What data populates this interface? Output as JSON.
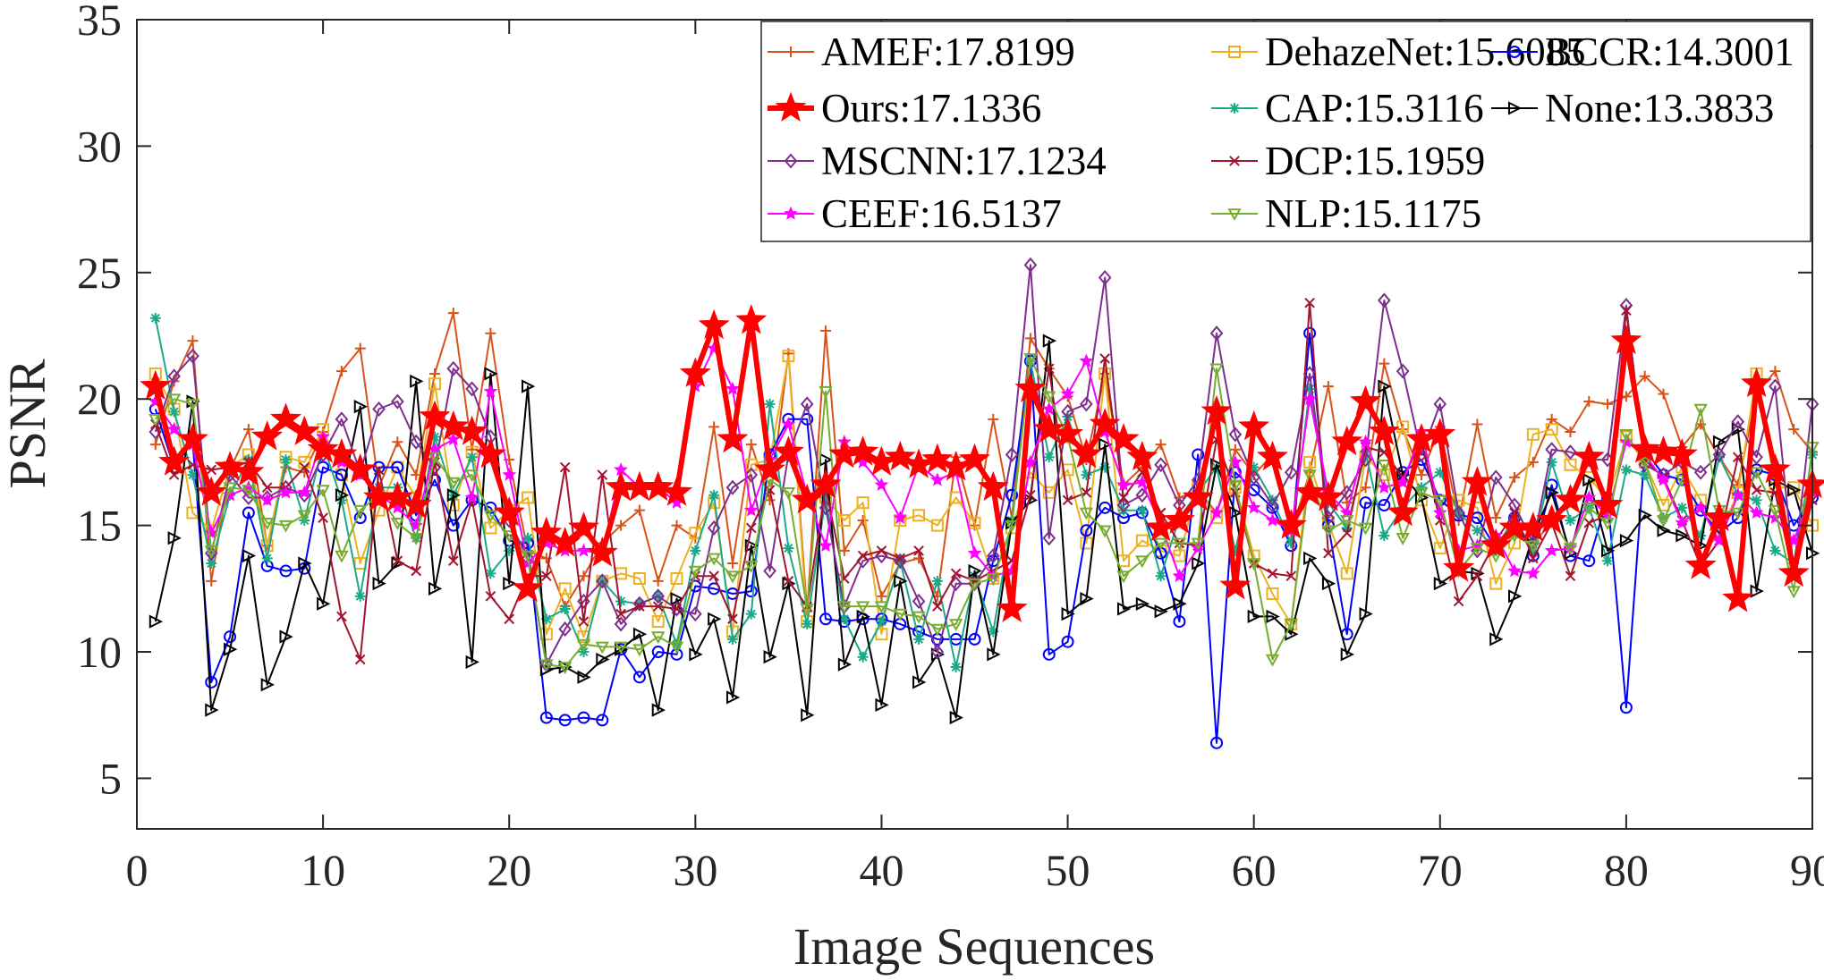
{
  "chart_data": {
    "type": "line",
    "title": "",
    "xlabel": "Image Sequences",
    "ylabel": "PSNR",
    "xlim": [
      0,
      90
    ],
    "ylim": [
      3,
      35
    ],
    "xticks": [
      0,
      10,
      20,
      30,
      40,
      50,
      60,
      70,
      80,
      90
    ],
    "yticks": [
      5,
      10,
      15,
      20,
      25,
      30,
      35
    ],
    "grid": false,
    "legend_position": "top-right",
    "x": [
      1,
      2,
      3,
      4,
      5,
      6,
      7,
      8,
      9,
      10,
      11,
      12,
      13,
      14,
      15,
      16,
      17,
      18,
      19,
      20,
      21,
      22,
      23,
      24,
      25,
      26,
      27,
      28,
      29,
      30,
      31,
      32,
      33,
      34,
      35,
      36,
      37,
      38,
      39,
      40,
      41,
      42,
      43,
      44,
      45,
      46,
      47,
      48,
      49,
      50,
      51,
      52,
      53,
      54,
      55,
      56,
      57,
      58,
      59,
      60,
      61,
      62,
      63,
      64,
      65,
      66,
      67,
      68,
      69,
      70,
      71,
      72,
      73,
      74,
      75,
      76,
      77,
      78,
      79,
      80,
      81,
      82,
      83,
      84,
      85,
      86,
      87,
      88,
      89,
      90
    ],
    "series": [
      {
        "name": "AMEF:17.8199",
        "color": "#D95319",
        "marker": "plus",
        "linewidth": 2,
        "values": [
          18.2,
          20.7,
          22.3,
          12.8,
          17.2,
          18.8,
          14.2,
          17.3,
          17.1,
          18.7,
          21.1,
          22.0,
          16.5,
          18.3,
          17.0,
          21.0,
          23.4,
          18.0,
          22.6,
          17.6,
          14.0,
          13.7,
          11.8,
          13.0,
          14.3,
          15.0,
          15.6,
          12.8,
          15.0,
          14.5,
          18.9,
          13.5,
          18.2,
          16.0,
          21.8,
          11.6,
          22.7,
          14.0,
          15.2,
          12.2,
          13.5,
          13.7,
          12.2,
          17.7,
          15.0,
          19.2,
          15.3,
          22.4,
          21.2,
          20.1,
          17.6,
          21.0,
          16.6,
          17.3,
          18.2,
          16.1,
          16.4,
          15.5,
          18.0,
          17.0,
          17.8,
          14.7,
          17.1,
          20.5,
          15.9,
          16.5,
          21.4,
          18.8,
          17.0,
          18.9,
          15.2,
          19.0,
          15.3,
          16.9,
          17.5,
          19.2,
          18.7,
          19.9,
          19.8,
          20.1,
          20.9,
          20.2,
          18.1,
          19.0,
          17.7,
          16.6,
          20.2,
          21.1,
          18.8,
          17.9
        ]
      },
      {
        "name": "DehazeNet:15.6085",
        "color": "#EDB120",
        "marker": "square",
        "linewidth": 2,
        "values": [
          21.0,
          19.6,
          15.5,
          14.8,
          17.3,
          17.8,
          14.2,
          17.7,
          17.5,
          18.8,
          17.0,
          13.5,
          15.6,
          17.3,
          16.1,
          20.6,
          15.8,
          17.9,
          14.9,
          15.6,
          16.1,
          10.7,
          12.5,
          10.6,
          12.8,
          13.1,
          12.9,
          11.2,
          12.9,
          14.7,
          15.9,
          10.8,
          17.4,
          17.6,
          21.7,
          11.2,
          16.1,
          15.2,
          15.9,
          10.7,
          15.2,
          15.4,
          15.0,
          16.1,
          15.1,
          12.9,
          14.9,
          17.1,
          16.3,
          17.2,
          14.3,
          21.0,
          13.6,
          14.4,
          14.0,
          13.8,
          16.5,
          15.3,
          16.5,
          13.8,
          12.3,
          11.1,
          17.5,
          15.1,
          13.1,
          17.7,
          17.0,
          18.9,
          16.0,
          14.1,
          16.0,
          15.7,
          12.7,
          14.3,
          18.6,
          18.8,
          17.4,
          16.9,
          16.0,
          18.5,
          17.5,
          15.8,
          17.3,
          16.0,
          14.6,
          16.3,
          21.0,
          16.5,
          16.5,
          15.0
        ]
      },
      {
        "name": "BCCR:14.3001",
        "color": "#0000FF",
        "marker": "circle",
        "linewidth": 2,
        "values": [
          19.6,
          17.3,
          18.3,
          8.8,
          10.6,
          15.5,
          13.4,
          13.2,
          13.3,
          17.3,
          17.0,
          15.3,
          17.3,
          17.3,
          15.4,
          16.8,
          15.0,
          16.0,
          15.7,
          14.4,
          14.3,
          7.4,
          7.3,
          7.4,
          7.3,
          10.1,
          9.0,
          10.0,
          9.9,
          12.6,
          12.5,
          12.3,
          12.4,
          17.8,
          19.2,
          19.2,
          11.3,
          11.2,
          11.3,
          11.3,
          11.1,
          10.8,
          10.5,
          10.5,
          10.5,
          13.6,
          16.2,
          21.5,
          9.9,
          10.4,
          14.8,
          15.7,
          15.3,
          15.5,
          13.9,
          11.2,
          17.8,
          6.4,
          17.1,
          16.4,
          15.7,
          14.2,
          22.6,
          15.0,
          10.7,
          15.9,
          15.8,
          17.1,
          17.6,
          16.0,
          15.4,
          15.3,
          14.1,
          15.3,
          13.8,
          16.6,
          13.8,
          13.6,
          16.1,
          7.8,
          18.0,
          17.0,
          16.8,
          15.6,
          14.7,
          15.3,
          17.2,
          17.0,
          15.0,
          16.1
        ]
      },
      {
        "name": "Ours:17.1336",
        "color": "#FF0000",
        "marker": "star",
        "linewidth": 6,
        "values": [
          20.5,
          17.5,
          18.4,
          16.3,
          17.3,
          17.1,
          18.5,
          19.2,
          18.7,
          18.0,
          17.8,
          17.2,
          16.1,
          16.1,
          15.8,
          19.3,
          18.9,
          18.7,
          17.8,
          15.5,
          12.5,
          14.7,
          14.3,
          14.9,
          13.9,
          16.5,
          16.5,
          16.5,
          16.3,
          21.0,
          22.9,
          18.4,
          23.1,
          17.2,
          17.9,
          16.0,
          16.6,
          17.8,
          17.9,
          17.5,
          17.7,
          17.4,
          17.6,
          17.3,
          17.6,
          16.5,
          11.7,
          20.4,
          18.8,
          18.6,
          17.8,
          19.0,
          18.4,
          17.7,
          14.9,
          15.2,
          16.1,
          19.5,
          12.6,
          18.9,
          17.7,
          15.0,
          16.3,
          16.1,
          18.3,
          19.9,
          18.7,
          15.5,
          18.4,
          18.6,
          13.3,
          16.7,
          14.2,
          14.9,
          14.9,
          15.2,
          16.0,
          17.7,
          15.8,
          22.3,
          18.0,
          17.9,
          17.8,
          13.4,
          15.3,
          12.1,
          20.6,
          17.2,
          13.1,
          16.6
        ]
      },
      {
        "name": "CAP:15.3116",
        "color": "#1AAA8A",
        "marker": "asterisk",
        "linewidth": 2,
        "values": [
          23.2,
          19.5,
          17.0,
          13.5,
          16.2,
          17.6,
          13.7,
          17.6,
          15.2,
          18.2,
          16.0,
          12.2,
          16.5,
          16.5,
          14.5,
          18.5,
          16.2,
          17.7,
          13.1,
          14.0,
          14.5,
          11.3,
          11.7,
          10.0,
          12.8,
          12.0,
          11.9,
          12.2,
          10.3,
          14.0,
          16.2,
          10.5,
          11.5,
          19.8,
          14.1,
          11.1,
          16.1,
          11.3,
          9.8,
          11.2,
          13.6,
          10.5,
          12.8,
          9.4,
          13.0,
          10.8,
          15.2,
          21.5,
          17.7,
          19.3,
          17.0,
          17.3,
          15.6,
          15.6,
          13.0,
          15.3,
          16.3,
          17.3,
          14.0,
          17.3,
          16.0,
          14.3,
          20.4,
          15.9,
          14.9,
          17.9,
          14.6,
          15.7,
          16.5,
          17.1,
          15.5,
          14.8,
          14.1,
          15.3,
          14.0,
          17.5,
          15.2,
          15.7,
          13.6,
          17.2,
          17.0,
          15.3,
          15.7,
          14.6,
          17.7,
          16.2,
          16.0,
          14.0,
          13.5,
          17.8
        ]
      },
      {
        "name": "None:13.3833",
        "color": "#000000",
        "marker": "triangle-right",
        "linewidth": 2,
        "values": [
          11.2,
          14.5,
          19.9,
          7.7,
          10.1,
          13.8,
          8.7,
          10.6,
          13.5,
          11.9,
          16.2,
          19.7,
          12.7,
          13.5,
          20.7,
          12.5,
          16.2,
          9.6,
          21.0,
          12.7,
          20.5,
          9.3,
          9.4,
          9.0,
          9.7,
          10.1,
          10.7,
          7.7,
          12.1,
          9.9,
          11.3,
          8.2,
          14.2,
          9.8,
          12.7,
          7.5,
          17.6,
          9.5,
          11.4,
          7.9,
          12.8,
          8.8,
          9.9,
          7.4,
          13.2,
          9.9,
          15.1,
          16.0,
          22.3,
          11.5,
          12.1,
          18.2,
          11.7,
          11.9,
          11.6,
          11.9,
          13.5,
          17.4,
          15.5,
          11.4,
          11.4,
          10.7,
          13.7,
          12.7,
          9.9,
          11.5,
          20.5,
          17.0,
          16.1,
          12.7,
          13.2,
          13.1,
          10.5,
          12.2,
          14.6,
          16.3,
          13.9,
          16.8,
          14.0,
          14.4,
          15.4,
          14.8,
          14.6,
          14.2,
          18.3,
          18.8,
          12.4,
          16.8,
          16.4,
          13.9
        ]
      },
      {
        "name": "MSCNN:17.1234",
        "color": "#7E2F8E",
        "marker": "diamond",
        "linewidth": 2,
        "values": [
          18.7,
          20.9,
          21.7,
          13.9,
          17.0,
          16.1,
          16.1,
          16.5,
          16.2,
          17.8,
          19.2,
          17.1,
          19.6,
          19.9,
          18.3,
          17.3,
          21.2,
          20.4,
          18.5,
          15.2,
          13.7,
          9.5,
          10.9,
          12.0,
          12.8,
          11.1,
          11.9,
          12.2,
          11.7,
          11.5,
          14.9,
          16.5,
          17.0,
          13.2,
          17.8,
          19.8,
          15.7,
          11.8,
          13.6,
          13.8,
          13.6,
          12.0,
          10.0,
          12.7,
          12.7,
          13.8,
          17.8,
          25.3,
          14.5,
          19.5,
          19.8,
          24.8,
          15.8,
          16.2,
          17.4,
          15.8,
          16.8,
          22.6,
          18.6,
          16.9,
          15.8,
          17.1,
          21.0,
          15.3,
          16.3,
          17.6,
          23.9,
          21.1,
          17.8,
          19.8,
          15.5,
          14.0,
          16.9,
          15.8,
          14.3,
          18.0,
          17.9,
          17.6,
          17.6,
          23.7,
          17.4,
          17.0,
          17.5,
          17.1,
          17.8,
          19.1,
          17.7,
          20.5,
          13.2,
          19.8
        ]
      },
      {
        "name": "DCP:15.1959",
        "color": "#A2142F",
        "marker": "x",
        "linewidth": 2,
        "values": [
          19.0,
          17.0,
          17.4,
          17.2,
          17.3,
          17.5,
          16.5,
          16.5,
          17.3,
          15.3,
          11.4,
          9.7,
          17.2,
          13.6,
          13.2,
          17.5,
          13.6,
          16.0,
          12.2,
          11.3,
          13.0,
          13.0,
          17.3,
          11.2,
          17.0,
          11.5,
          11.8,
          11.8,
          11.7,
          13.0,
          13.0,
          11.3,
          14.9,
          16.4,
          12.8,
          11.8,
          16.5,
          12.9,
          13.8,
          14.0,
          13.7,
          14.0,
          11.8,
          13.1,
          12.8,
          13.2,
          13.6,
          16.2,
          21.2,
          16.0,
          16.3,
          21.6,
          16.1,
          17.1,
          15.5,
          14.3,
          14.2,
          18.4,
          16.3,
          13.5,
          13.1,
          13.0,
          23.8,
          13.9,
          14.7,
          18.1,
          17.9,
          16.9,
          18.3,
          15.2,
          12.0,
          13.0,
          14.4,
          15.5,
          13.7,
          15.1,
          13.0,
          15.1,
          15.4,
          23.5,
          17.6,
          16.9,
          15.2,
          13.4,
          14.4,
          17.7,
          16.4,
          16.3,
          13.0,
          16.0
        ]
      },
      {
        "name": "CEEF:16.5137",
        "color": "#FF00FF",
        "marker": "star",
        "linewidth": 2,
        "values": [
          19.9,
          18.8,
          18.2,
          14.7,
          16.2,
          16.5,
          16.0,
          16.3,
          16.3,
          18.5,
          17.5,
          17.0,
          16.2,
          15.7,
          15.0,
          18.0,
          18.4,
          16.1,
          20.3,
          17.0,
          13.5,
          14.3,
          14.0,
          14.0,
          13.9,
          17.2,
          16.5,
          16.5,
          15.9,
          20.5,
          22.0,
          20.4,
          15.6,
          17.6,
          19.0,
          16.2,
          14.2,
          18.3,
          17.5,
          16.6,
          15.3,
          17.4,
          16.8,
          17.1,
          13.9,
          13.0,
          13.2,
          17.5,
          19.6,
          20.2,
          21.5,
          18.7,
          16.6,
          16.7,
          15.0,
          13.0,
          14.1,
          15.5,
          17.5,
          15.7,
          15.2,
          14.8,
          20.0,
          16.3,
          15.5,
          18.3,
          16.5,
          16.7,
          18.7,
          15.5,
          14.0,
          14.2,
          14.6,
          13.2,
          13.1,
          14.0,
          14.1,
          16.1,
          15.4,
          18.3,
          17.8,
          16.8,
          15.1,
          15.7,
          14.4,
          16.2,
          15.5,
          15.3,
          14.4,
          16.3
        ]
      },
      {
        "name": "NLP:15.1175",
        "color": "#77AC30",
        "marker": "triangle-down",
        "linewidth": 2,
        "values": [
          19.2,
          20.0,
          19.8,
          14.0,
          16.5,
          16.4,
          15.1,
          15.0,
          15.4,
          16.4,
          13.8,
          15.6,
          16.2,
          15.1,
          14.5,
          17.7,
          16.7,
          17.0,
          15.4,
          14.6,
          13.8,
          9.5,
          9.4,
          10.3,
          10.2,
          10.2,
          10.1,
          10.6,
          10.2,
          13.2,
          13.7,
          13.0,
          13.4,
          16.8,
          16.3,
          11.7,
          20.3,
          11.8,
          11.8,
          11.8,
          11.5,
          11.4,
          10.9,
          11.1,
          12.7,
          12.9,
          15.0,
          21.6,
          20.1,
          18.5,
          15.5,
          14.8,
          13.0,
          13.6,
          14.3,
          14.3,
          14.3,
          21.2,
          16.6,
          13.5,
          9.7,
          11.1,
          17.0,
          14.8,
          15.2,
          14.9,
          17.4,
          14.5,
          16.3,
          16.0,
          13.2,
          14.1,
          13.8,
          14.6,
          14.2,
          15.2,
          14.1,
          15.7,
          15.1,
          18.6,
          17.5,
          15.2,
          16.8,
          19.6,
          15.6,
          15.5,
          17.1,
          15.6,
          12.4,
          18.1
        ]
      }
    ],
    "legend": {
      "columns": [
        [
          "AMEF:17.8199",
          "Ours:17.1336",
          "MSCNN:17.1234",
          "CEEF:16.5137"
        ],
        [
          "DehazeNet:15.6085",
          "CAP:15.3116",
          "DCP:15.1959",
          "NLP:15.1175"
        ],
        [
          "BCCR:14.3001",
          "None:13.3833"
        ]
      ]
    }
  }
}
